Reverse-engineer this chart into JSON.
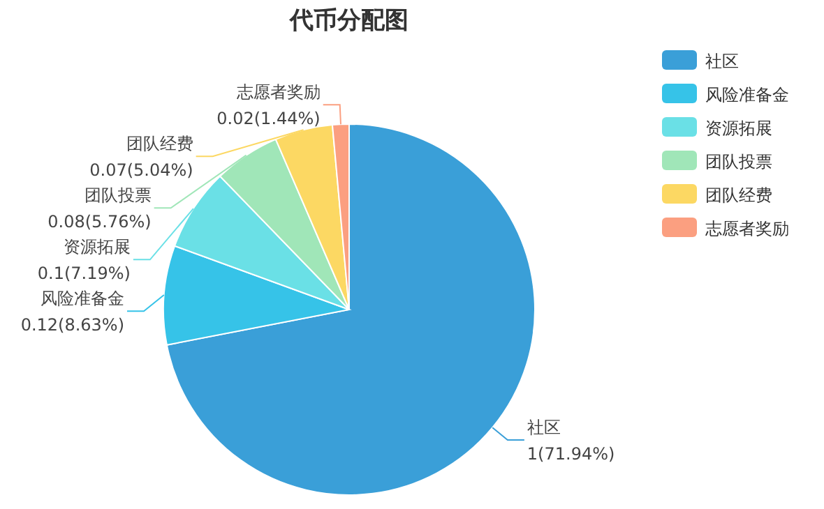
{
  "chart_data": {
    "type": "pie",
    "title": "代币分配图",
    "categories": [
      "社区",
      "风险准备金",
      "资源拓展",
      "团队投票",
      "团队经费",
      "志愿者奖励"
    ],
    "values": [
      1,
      0.12,
      0.1,
      0.08,
      0.07,
      0.02
    ],
    "colors": [
      "#3a9fd8",
      "#36c3e8",
      "#6ae0e6",
      "#a0e6b8",
      "#fcd863",
      "#fb9f80"
    ],
    "value_labels": [
      "1(71.94%)",
      "0.12(8.63%)",
      "0.1(7.19%)",
      "0.08(5.76%)",
      "0.07(5.04%)",
      "0.02(1.44%)"
    ],
    "legend": "right"
  }
}
